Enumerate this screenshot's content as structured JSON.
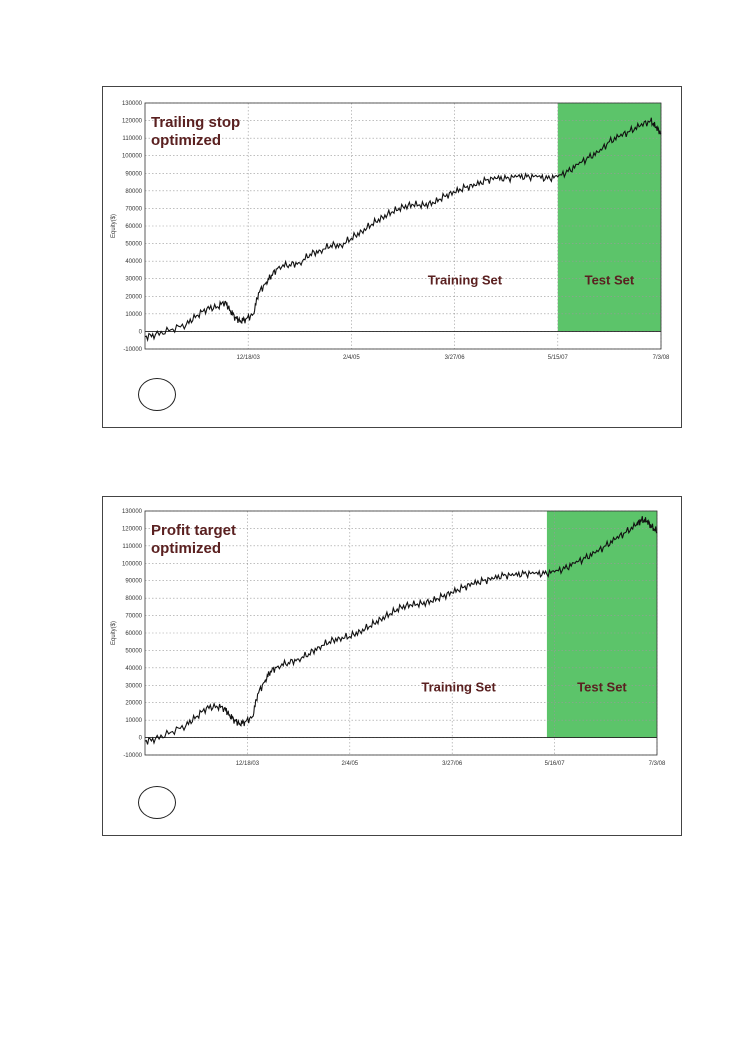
{
  "chart_data": [
    {
      "type": "line",
      "title_lines": [
        "Trailing stop",
        "optimized"
      ],
      "ylabel": "Equity($)",
      "ylim": [
        -10000,
        130000
      ],
      "yticks": [
        -10000,
        0,
        10000,
        20000,
        30000,
        40000,
        50000,
        60000,
        70000,
        80000,
        90000,
        100000,
        110000,
        120000,
        130000
      ],
      "x_tick_labels": [
        "12/18/03",
        "2/4/05",
        "3/27/06",
        "5/15/07",
        "7/3/08"
      ],
      "x_tick_pos": [
        0.2,
        0.4,
        0.6,
        0.8,
        1.0
      ],
      "region_labels": {
        "training": "Training Set",
        "test": "Test Set"
      },
      "test_start": 0.8,
      "grid": true,
      "colors": {
        "test_fill": "#5cc46a",
        "line": "#111111",
        "title": "#5a2020"
      },
      "series": [
        {
          "x": [
            0,
            0.02,
            0.05,
            0.08,
            0.1,
            0.12,
            0.14,
            0.155,
            0.165,
            0.175,
            0.185,
            0.195,
            0.21,
            0.22,
            0.235,
            0.245,
            0.26,
            0.28,
            0.3,
            0.32,
            0.34,
            0.36,
            0.38,
            0.4,
            0.42,
            0.44,
            0.46,
            0.48,
            0.5,
            0.52,
            0.54,
            0.56,
            0.58,
            0.6,
            0.62,
            0.64,
            0.66,
            0.68,
            0.7,
            0.72,
            0.74,
            0.76,
            0.78,
            0.8,
            0.82,
            0.84,
            0.86,
            0.88,
            0.9,
            0.92,
            0.94,
            0.96,
            0.98,
            0.99,
            1.0
          ],
          "values": [
            -3000,
            -2000,
            1000,
            4000,
            9000,
            13000,
            14000,
            17000,
            12000,
            8000,
            6000,
            7000,
            10000,
            22000,
            28000,
            32000,
            37000,
            38000,
            39000,
            44000,
            46000,
            49000,
            49000,
            53000,
            57000,
            61000,
            65000,
            68000,
            71000,
            72000,
            72000,
            73000,
            77000,
            79000,
            82000,
            83000,
            86000,
            87000,
            87000,
            88000,
            88000,
            88000,
            87000,
            88000,
            91000,
            95000,
            99000,
            102000,
            108000,
            111000,
            114000,
            117000,
            120000,
            116000,
            113000
          ]
        }
      ]
    },
    {
      "type": "line",
      "title_lines": [
        "Profit target",
        "optimized"
      ],
      "ylabel": "Equity($)",
      "ylim": [
        -10000,
        130000
      ],
      "yticks": [
        -10000,
        0,
        10000,
        20000,
        30000,
        40000,
        50000,
        60000,
        70000,
        80000,
        90000,
        100000,
        110000,
        120000,
        130000
      ],
      "x_tick_labels": [
        "12/18/03",
        "2/4/05",
        "3/27/06",
        "5/16/07",
        "7/3/08"
      ],
      "x_tick_pos": [
        0.2,
        0.4,
        0.6,
        0.8,
        1.0
      ],
      "region_labels": {
        "training": "Training Set",
        "test": "Test Set"
      },
      "test_start": 0.785,
      "grid": true,
      "colors": {
        "test_fill": "#5cc46a",
        "line": "#111111",
        "title": "#5a2020"
      },
      "series": [
        {
          "x": [
            0,
            0.02,
            0.05,
            0.08,
            0.1,
            0.12,
            0.14,
            0.155,
            0.165,
            0.175,
            0.185,
            0.195,
            0.21,
            0.22,
            0.235,
            0.245,
            0.26,
            0.28,
            0.3,
            0.32,
            0.34,
            0.36,
            0.38,
            0.4,
            0.42,
            0.44,
            0.46,
            0.48,
            0.5,
            0.52,
            0.54,
            0.56,
            0.58,
            0.6,
            0.62,
            0.64,
            0.66,
            0.68,
            0.7,
            0.72,
            0.74,
            0.76,
            0.78,
            0.8,
            0.82,
            0.84,
            0.86,
            0.88,
            0.9,
            0.92,
            0.94,
            0.96,
            0.97,
            0.98,
            0.99,
            1.0
          ],
          "values": [
            -2000,
            -1000,
            3000,
            7000,
            12000,
            17000,
            18000,
            17000,
            13000,
            10000,
            8000,
            9000,
            12000,
            25000,
            33000,
            38000,
            41000,
            43000,
            45000,
            48000,
            52000,
            55000,
            57000,
            58000,
            61000,
            64000,
            68000,
            71000,
            75000,
            76000,
            77000,
            78000,
            81000,
            83000,
            86000,
            88000,
            90000,
            91000,
            93000,
            93000,
            94000,
            94000,
            94000,
            95000,
            97000,
            100000,
            103000,
            106000,
            110000,
            114000,
            118000,
            122000,
            125000,
            124000,
            121000,
            118000
          ]
        }
      ]
    }
  ]
}
